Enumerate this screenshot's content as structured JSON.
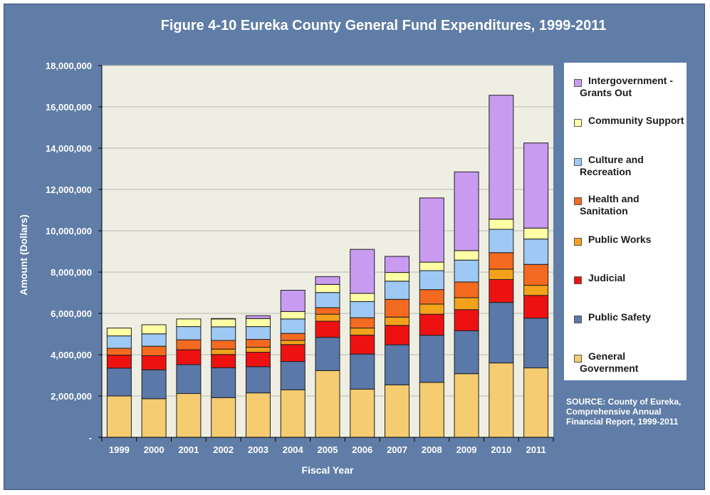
{
  "chart_data": {
    "type": "bar",
    "stacked": true,
    "title": "Figure  4-10 Eureka County General Fund Expenditures, 1999-2011",
    "xlabel": "Fiscal Year",
    "ylabel": "Amount (Dollars)",
    "ylim": [
      0,
      18000000
    ],
    "yticks": [
      "-",
      "2,000,000",
      "4,000,000",
      "6,000,000",
      "8,000,000",
      "10,000,000",
      "12,000,000",
      "14,000,000",
      "16,000,000",
      "18,000,000"
    ],
    "grid": true,
    "legend_position": "right",
    "categories": [
      "1999",
      "2000",
      "2001",
      "2002",
      "2003",
      "2004",
      "2005",
      "2006",
      "2007",
      "2008",
      "2009",
      "2010",
      "2011"
    ],
    "series": [
      {
        "name": "General Government",
        "color": "#f5cc70",
        "values": [
          2000000,
          1870000,
          2120000,
          1920000,
          2150000,
          2300000,
          3230000,
          2330000,
          2540000,
          2660000,
          3080000,
          3600000,
          3360000
        ]
      },
      {
        "name": "Public Safety",
        "color": "#5a78a8",
        "values": [
          1350000,
          1400000,
          1400000,
          1450000,
          1270000,
          1370000,
          1610000,
          1700000,
          1940000,
          2280000,
          2080000,
          2930000,
          2410000
        ]
      },
      {
        "name": "Judicial",
        "color": "#ee1111",
        "values": [
          630000,
          680000,
          720000,
          640000,
          700000,
          820000,
          780000,
          920000,
          940000,
          1020000,
          1020000,
          1110000,
          1100000
        ]
      },
      {
        "name": "Public Works",
        "color": "#f5a21b",
        "values": [
          0,
          0,
          0,
          260000,
          240000,
          200000,
          340000,
          340000,
          400000,
          490000,
          580000,
          500000,
          490000
        ]
      },
      {
        "name": "Health and Sanitation",
        "color": "#f46a20",
        "values": [
          330000,
          460000,
          480000,
          420000,
          380000,
          340000,
          320000,
          500000,
          860000,
          700000,
          760000,
          800000,
          1010000
        ]
      },
      {
        "name": "Culture and Recreation",
        "color": "#9ec9f5",
        "values": [
          600000,
          600000,
          640000,
          660000,
          620000,
          700000,
          730000,
          780000,
          880000,
          920000,
          1060000,
          1130000,
          1230000
        ]
      },
      {
        "name": "Community Support",
        "color": "#ffffa6",
        "values": [
          380000,
          440000,
          370000,
          380000,
          390000,
          360000,
          390000,
          400000,
          420000,
          410000,
          460000,
          490000,
          530000
        ]
      },
      {
        "name": "Intergovernment - Grants Out",
        "color": "#c89bf0",
        "values": [
          0,
          0,
          0,
          20000,
          140000,
          1030000,
          380000,
          2130000,
          780000,
          3110000,
          3810000,
          6000000,
          4120000
        ]
      }
    ]
  },
  "legend": [
    {
      "label": "Intergovernment - Grants Out",
      "color": "#c89bf0"
    },
    {
      "label": "Community Support",
      "color": "#ffffa6"
    },
    {
      "label": "Culture and Recreation",
      "color": "#9ec9f5"
    },
    {
      "label": "Health and Sanitation",
      "color": "#f46a20"
    },
    {
      "label": "Public Works",
      "color": "#f5a21b"
    },
    {
      "label": "Judicial",
      "color": "#ee1111"
    },
    {
      "label": "Public Safety",
      "color": "#5a78a8"
    },
    {
      "label": "General Government",
      "color": "#f5cc70"
    }
  ],
  "source_note": "SOURCE: County of Eureka, Comprehensive Annual Financial Report, 1999-2011",
  "colors": {
    "background": "#5f7da6",
    "plot_area": "#efeee3",
    "gridline": "#b8b8b0",
    "bar_outline": "#1e1e1e"
  }
}
